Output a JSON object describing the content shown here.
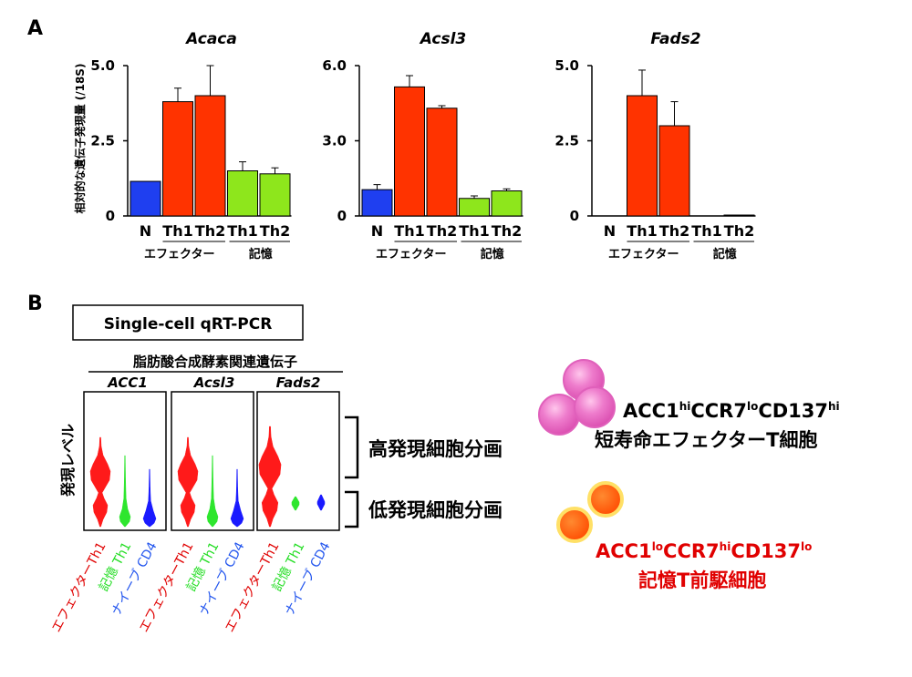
{
  "panel_a_label": "A",
  "panel_b_label": "B",
  "y_axis_label": "相対的な遺伝子発現量 (/18S)",
  "colors": {
    "naive": "#1f3ff0",
    "effector": "#ff3300",
    "memory": "#8ee61c",
    "violin_red": "#ff1a1a",
    "violin_green": "#2ee62e",
    "violin_blue": "#1a1aff",
    "cell_pink": "#e855b8",
    "cell_orange": "#ff5a00",
    "text_red": "#e00000"
  },
  "chart_data": [
    {
      "type": "bar",
      "title": "Acaca",
      "ylabel": "相対的な遺伝子発現量 (/18S)",
      "ylim": [
        0,
        5.0
      ],
      "yticks": [
        "0",
        "2.5",
        "5.0"
      ],
      "categories": [
        "N",
        "Th1",
        "Th2",
        "Th1",
        "Th2"
      ],
      "groups": [
        "エフェクター",
        "記憶"
      ],
      "values": [
        1.15,
        3.8,
        4.0,
        1.5,
        1.4
      ],
      "errors": [
        0,
        0.45,
        1.0,
        0.3,
        0.2
      ]
    },
    {
      "type": "bar",
      "title": "Acsl3",
      "ylabel": "相対的な遺伝子発現量 (/18S)",
      "ylim": [
        0,
        6.0
      ],
      "yticks": [
        "0",
        "3.0",
        "6.0"
      ],
      "categories": [
        "N",
        "Th1",
        "Th2",
        "Th1",
        "Th2"
      ],
      "groups": [
        "エフェクター",
        "記憶"
      ],
      "values": [
        1.05,
        5.15,
        4.3,
        0.7,
        1.0
      ],
      "errors": [
        0.2,
        0.45,
        0.1,
        0.1,
        0.08
      ]
    },
    {
      "type": "bar",
      "title": "Fads2",
      "ylabel": "相対的な遺伝子発現量 (/18S)",
      "ylim": [
        0,
        5.0
      ],
      "yticks": [
        "0",
        "2.5",
        "5.0"
      ],
      "categories": [
        "N",
        "Th1",
        "Th2",
        "Th1",
        "Th2"
      ],
      "groups": [
        "エフェクター",
        "記憶"
      ],
      "values": [
        0,
        4.0,
        3.0,
        0,
        0.03
      ],
      "errors": [
        0,
        0.85,
        0.8,
        0,
        0
      ]
    }
  ],
  "panel_b": {
    "box_title": "Single-cell qRT-PCR",
    "gene_group": "脂肪酸合成酵素関連遺伝子",
    "genes": [
      "ACC1",
      "Acsl3",
      "Fads2"
    ],
    "y_label": "発現レベル",
    "bracket_high": "高発現細胞分画",
    "bracket_low": "低発現細胞分画",
    "x_labels": [
      {
        "text": "エフェクターTh1",
        "color": "#e00000"
      },
      {
        "text": "記憶 Th1",
        "color": "#22dd22"
      },
      {
        "text": "ナイーブ CD4",
        "color": "#2255ee"
      }
    ],
    "cell_high": {
      "p1": "ACC1",
      "s1": "hi",
      "p2": "CCR7",
      "s2": "lo",
      "p3": "CD137",
      "s3": "hi",
      "name": "短寿命エフェクターT細胞"
    },
    "cell_low": {
      "p1": "ACC1",
      "s1": "lo",
      "p2": "CCR7",
      "s2": "hi",
      "p3": "CD137",
      "s3": "lo",
      "name": "記憶T前駆細胞"
    }
  }
}
